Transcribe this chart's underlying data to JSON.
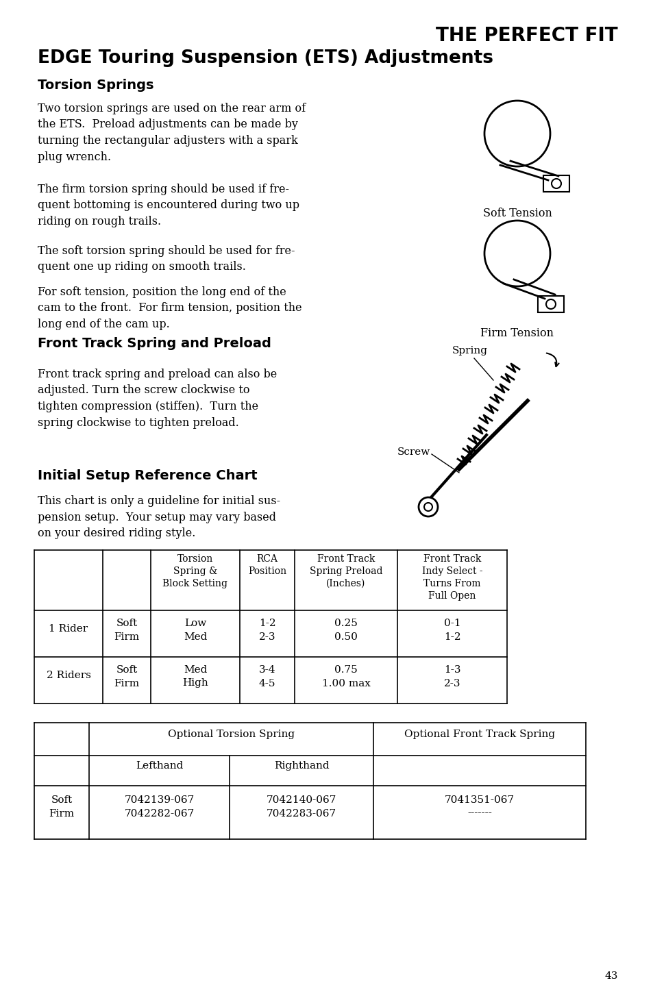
{
  "title_right": "THE PERFECT FIT",
  "title_main": "EDGE Touring Suspension (ETS) Adjustments",
  "section1_head": "Torsion Springs",
  "section1_p1": "Two torsion springs are used on the rear arm of\nthe ETS.  Preload adjustments can be made by\nturning the rectangular adjusters with a spark\nplug wrench.",
  "section1_img1_label": "Soft Tension",
  "section1_p2": "The firm torsion spring should be used if fre-\nquent bottoming is encountered during two up\nriding on rough trails.",
  "section1_img2_label": "Firm Tension",
  "section1_p3": "The soft torsion spring should be used for fre-\nquent one up riding on smooth trails.",
  "section1_p4": "For soft tension, position the long end of the\ncam to the front.  For firm tension, position the\nlong end of the cam up.",
  "section2_head": "Front Track Spring and Preload",
  "section2_img_label1": "Spring",
  "section2_img_label2": "Screw",
  "section2_p1": "Front track spring and preload can also be\nadjusted. Turn the screw clockwise to\ntighten compression (stiffen).  Turn the\nspring clockwise to tighten preload.",
  "section3_head": "Initial Setup Reference Chart",
  "section3_p1": "This chart is only a guideline for initial sus-\npension setup.  Your setup may vary based\non your desired riding style.",
  "table1_col_widths": [
    100,
    70,
    130,
    80,
    150,
    160
  ],
  "table1_headers": [
    "",
    "",
    "Torsion\nSpring &\nBlock Setting",
    "RCA\nPosition",
    "Front Track\nSpring Preload\n(Inches)",
    "Front Track\nIndy Select -\nTurns From\nFull Open"
  ],
  "table1_row1_label": "1 Rider",
  "table1_row1_softfirm": "Soft\nFirm",
  "table1_row1_vals": [
    "Low\nMed",
    "1-2\n2-3",
    "0.25\n0.50",
    "0-1\n1-2"
  ],
  "table1_row2_label": "2 Riders",
  "table1_row2_softfirm": "Soft\nFirm",
  "table1_row2_vals": [
    "Med\nHigh",
    "3-4\n4-5",
    "0.75\n1.00 max",
    "1-3\n2-3"
  ],
  "table2_header_span1": "Optional Torsion Spring",
  "table2_header_span2": "Optional Front Track Spring",
  "table2_row_label": "Soft\nFirm",
  "table2_left": "7042139-067\n7042282-067",
  "table2_right_lh": "7042140-067\n7042283-067",
  "table2_front": "7041351-067\n-------",
  "page_number": "43",
  "bg_color": "#ffffff",
  "text_color": "#000000"
}
